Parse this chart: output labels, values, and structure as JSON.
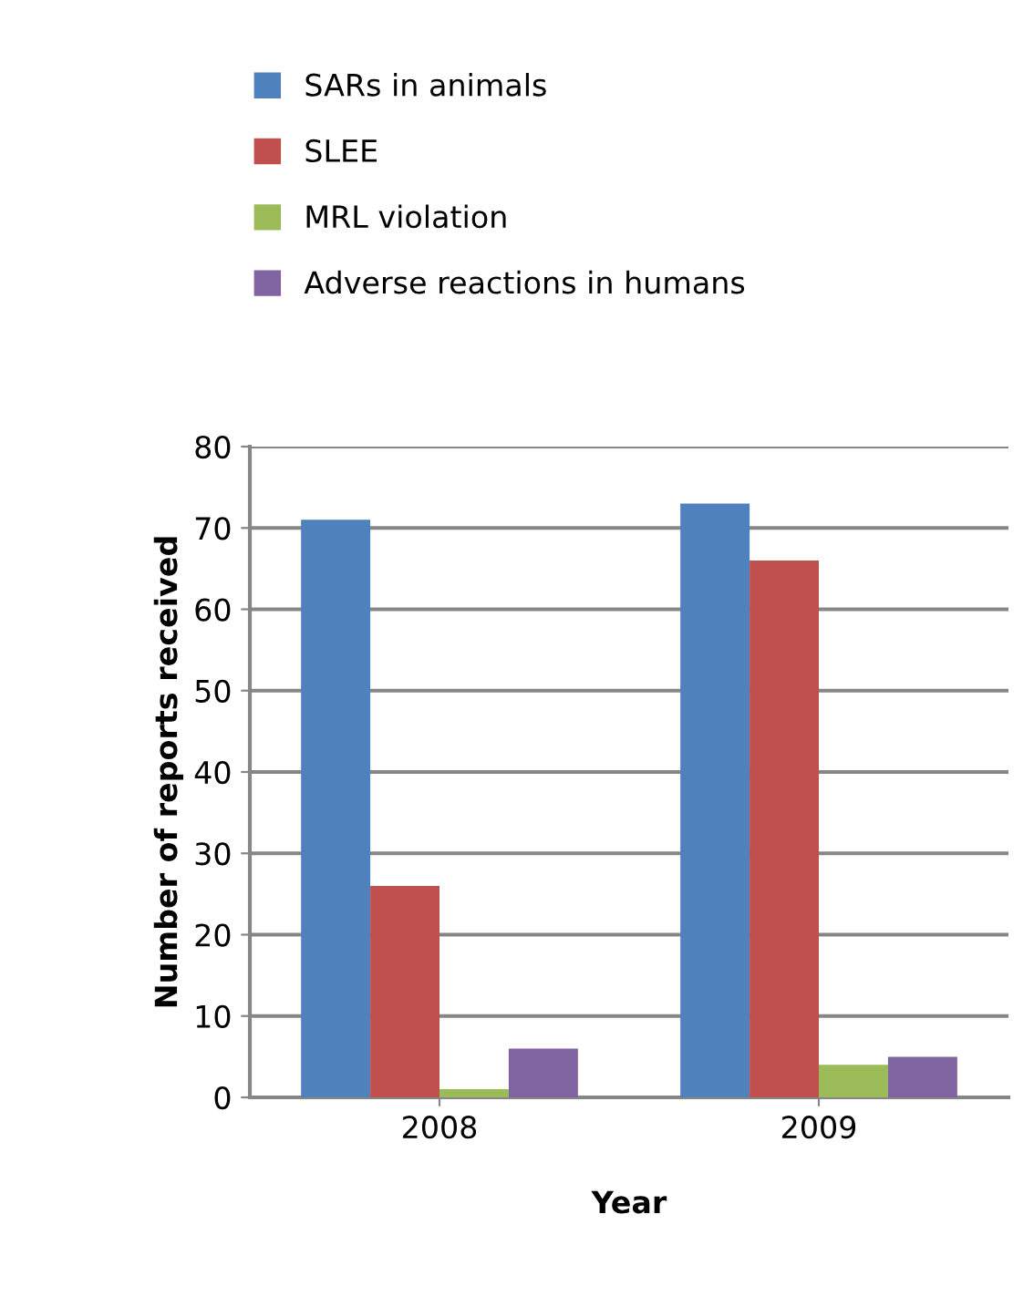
{
  "chart_data": {
    "type": "bar",
    "xlabel": "Year",
    "ylabel": "Number of reports received",
    "categories": [
      "2008",
      "2009"
    ],
    "series": [
      {
        "name": "SARs in animals",
        "color": "#4f81bd",
        "values": [
          71,
          73
        ]
      },
      {
        "name": "SLEE",
        "color": "#c0504d",
        "values": [
          26,
          66
        ]
      },
      {
        "name": "MRL violation",
        "color": "#9bbb59",
        "values": [
          1,
          4
        ]
      },
      {
        "name": "Adverse reactions in humans",
        "color": "#8064a2",
        "values": [
          6,
          5
        ]
      }
    ],
    "ylim": [
      0,
      80
    ],
    "yticks": [
      0,
      10,
      20,
      30,
      40,
      50,
      60,
      70,
      80
    ],
    "grid": "y",
    "legend": "top"
  }
}
